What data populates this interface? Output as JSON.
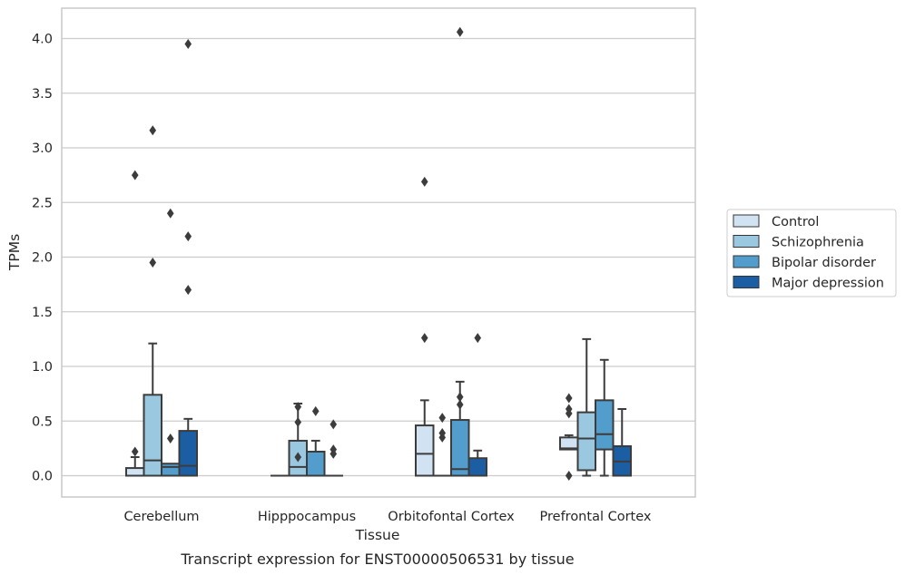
{
  "chart_data": {
    "type": "box",
    "xlabel": "Tissue",
    "ylabel": "TPMs",
    "caption": "Transcript expression for ENST00000506531 by tissue",
    "ylim": [
      -0.2,
      4.28
    ],
    "yticks": [
      "0.0",
      "0.5",
      "1.0",
      "1.5",
      "2.0",
      "2.5",
      "3.0",
      "3.5",
      "4.0"
    ],
    "grid": "horizontal",
    "legend_position": "right",
    "categories": [
      "Cerebellum",
      "Hipppocampus",
      "Orbitofontal Cortex",
      "Prefrontal Cortex"
    ],
    "series": [
      {
        "name": "Control",
        "color": "#d1e2f2",
        "boxes": [
          {
            "whislo": 0,
            "q1": 0,
            "med": 0,
            "q3": 0.07,
            "whishi": 0.17,
            "fliers": [
              0.22,
              2.75
            ]
          },
          {
            "whislo": 0,
            "q1": 0,
            "med": 0,
            "q3": 0,
            "whishi": 0,
            "fliers": []
          },
          {
            "whislo": 0,
            "q1": 0,
            "med": 0.2,
            "q3": 0.46,
            "whishi": 0.69,
            "fliers": [
              1.26,
              2.69
            ]
          },
          {
            "whislo": 0.24,
            "q1": 0.24,
            "med": 0.25,
            "q3": 0.35,
            "whishi": 0.37,
            "fliers": [
              0.0,
              0.57,
              0.61,
              0.71
            ]
          }
        ]
      },
      {
        "name": "Schizophrenia",
        "color": "#9ac8e0",
        "boxes": [
          {
            "whislo": 0,
            "q1": 0,
            "med": 0.14,
            "q3": 0.74,
            "whishi": 1.21,
            "fliers": [
              1.95,
              3.16
            ]
          },
          {
            "whislo": 0,
            "q1": 0,
            "med": 0.08,
            "q3": 0.32,
            "whishi": 0.66,
            "fliers": [
              0.17,
              0.49,
              0.63
            ]
          },
          {
            "whislo": 0,
            "q1": 0,
            "med": 0,
            "q3": 0,
            "whishi": 0,
            "fliers": [
              0.35,
              0.39,
              0.53
            ]
          },
          {
            "whislo": 0,
            "q1": 0.05,
            "med": 0.34,
            "q3": 0.58,
            "whishi": 1.25,
            "fliers": []
          }
        ]
      },
      {
        "name": "Bipolar disorder",
        "color": "#529dcc",
        "boxes": [
          {
            "whislo": 0,
            "q1": 0,
            "med": 0.08,
            "q3": 0.11,
            "whishi": 0.11,
            "fliers": [
              0.34,
              2.4
            ]
          },
          {
            "whislo": 0,
            "q1": 0,
            "med": 0,
            "q3": 0.22,
            "whishi": 0.32,
            "fliers": [
              0.59
            ]
          },
          {
            "whislo": 0,
            "q1": 0,
            "med": 0.06,
            "q3": 0.51,
            "whishi": 0.86,
            "fliers": [
              0.65,
              0.72,
              4.06
            ]
          },
          {
            "whislo": 0,
            "q1": 0.24,
            "med": 0.38,
            "q3": 0.69,
            "whishi": 1.06,
            "fliers": []
          }
        ]
      },
      {
        "name": "Major depression",
        "color": "#1c5ea3",
        "boxes": [
          {
            "whislo": 0,
            "q1": 0,
            "med": 0.09,
            "q3": 0.41,
            "whishi": 0.52,
            "fliers": [
              1.7,
              2.19,
              3.95
            ]
          },
          {
            "whislo": 0,
            "q1": 0,
            "med": 0,
            "q3": 0,
            "whishi": 0,
            "fliers": [
              0.2,
              0.24,
              0.47
            ]
          },
          {
            "whislo": 0,
            "q1": 0,
            "med": 0,
            "q3": 0.16,
            "whishi": 0.23,
            "fliers": [
              1.26
            ]
          },
          {
            "whislo": 0,
            "q1": 0,
            "med": 0.13,
            "q3": 0.27,
            "whishi": 0.61,
            "fliers": []
          }
        ]
      }
    ]
  }
}
